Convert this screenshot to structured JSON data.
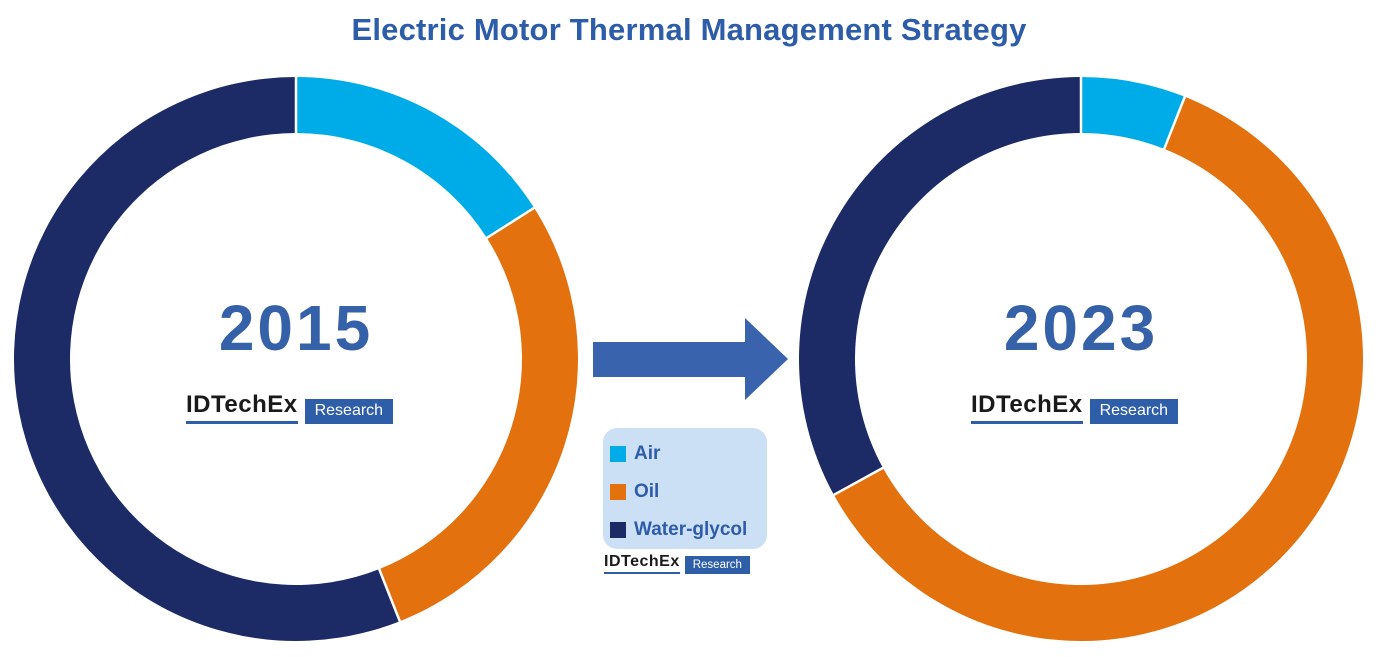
{
  "title": "Electric Motor Thermal Management Strategy",
  "brand": {
    "name": "IDTechEx",
    "suffix": "Research"
  },
  "colors": {
    "title_text": "#2D5CA8",
    "year_text": "#3561A8",
    "arrow": "#3A63AD",
    "legend_bg": "#CCE0F5",
    "legend_text": "#2E5CA8",
    "brand_bar": "#2E5EA8",
    "air": "#00ACE8",
    "oil": "#E2710E",
    "water_glycol": "#1C2B66"
  },
  "legend": {
    "items": [
      {
        "label": "Air",
        "color": "#00ACE8"
      },
      {
        "label": "Oil",
        "color": "#E2710E"
      },
      {
        "label": "Water-glycol",
        "color": "#1C2B66"
      }
    ]
  },
  "chart_data": [
    {
      "type": "pie",
      "subtype": "donut",
      "title": "2015",
      "labels": [
        "Air",
        "Oil",
        "Water-glycol"
      ],
      "values": [
        16,
        28,
        56
      ],
      "unit": "%",
      "colors": [
        "#00ACE8",
        "#E2710E",
        "#1C2B66"
      ],
      "start_angle_deg": 0,
      "direction": "clockwise",
      "inner_radius_ratio": 0.8,
      "center_label": "2015"
    },
    {
      "type": "pie",
      "subtype": "donut",
      "title": "2023",
      "labels": [
        "Air",
        "Oil",
        "Water-glycol"
      ],
      "values": [
        6,
        61,
        33
      ],
      "unit": "%",
      "colors": [
        "#00ACE8",
        "#E2710E",
        "#1C2B66"
      ],
      "start_angle_deg": 0,
      "direction": "clockwise",
      "inner_radius_ratio": 0.8,
      "center_label": "2023"
    }
  ]
}
